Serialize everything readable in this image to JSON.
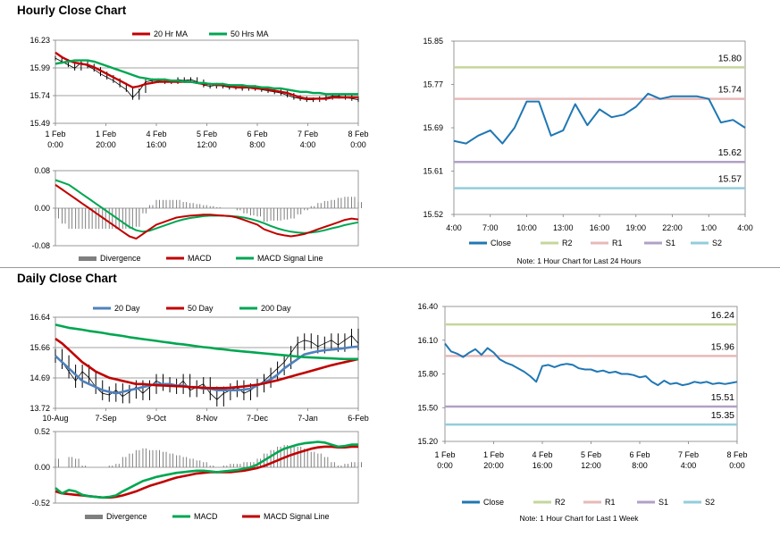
{
  "sections": {
    "hourly_title": "Hourly Close Chart",
    "daily_title": "Daily Close Chart"
  },
  "chart_data": [
    {
      "id": "hourly_price",
      "type": "line",
      "legend": [
        "20 Hr MA",
        "50 Hrs MA"
      ],
      "legend_colors": [
        "#c00000",
        "#00a651"
      ],
      "ylim": [
        15.49,
        16.23
      ],
      "y_ticks": [
        "16.23",
        "15.99",
        "15.74",
        "15.49"
      ],
      "x_ticks": [
        [
          "1 Feb",
          "0:00"
        ],
        [
          "1 Feb",
          "20:00"
        ],
        [
          "4 Feb",
          "16:00"
        ],
        [
          "5 Feb",
          "12:00"
        ],
        [
          "6 Feb",
          "8:00"
        ],
        [
          "7 Feb",
          "4:00"
        ],
        [
          "8 Feb",
          "0:00"
        ]
      ],
      "close": [
        16.07,
        16.04,
        16.01,
        15.98,
        16.03,
        16.0,
        15.97,
        15.93,
        15.9,
        15.87,
        15.83,
        15.79,
        15.72,
        15.78,
        15.86,
        15.87,
        15.87,
        15.86,
        15.86,
        15.88,
        15.87,
        15.88,
        15.86,
        15.83,
        15.82,
        15.83,
        15.82,
        15.81,
        15.81,
        15.8,
        15.81,
        15.8,
        15.79,
        15.78,
        15.77,
        15.76,
        15.74,
        15.72,
        15.71,
        15.7,
        15.7,
        15.71,
        15.72,
        15.73,
        15.73,
        15.72,
        15.71,
        15.7
      ],
      "series": [
        {
          "name": "20 Hr MA",
          "values": [
            16.12,
            16.08,
            16.05,
            16.03,
            16.02,
            16.01,
            15.99,
            15.96,
            15.93,
            15.9,
            15.87,
            15.84,
            15.81,
            15.82,
            15.84,
            15.85,
            15.86,
            15.86,
            15.86,
            15.86,
            15.86,
            15.86,
            15.85,
            15.84,
            15.84,
            15.83,
            15.83,
            15.82,
            15.81,
            15.81,
            15.81,
            15.8,
            15.8,
            15.79,
            15.78,
            15.77,
            15.76,
            15.74,
            15.72,
            15.71,
            15.71,
            15.71,
            15.71,
            15.72,
            15.72,
            15.72,
            15.72,
            15.72
          ]
        },
        {
          "name": "50 Hrs MA",
          "values": [
            16.02,
            16.03,
            16.04,
            16.05,
            16.05,
            16.05,
            16.04,
            16.02,
            16.0,
            15.98,
            15.96,
            15.94,
            15.92,
            15.9,
            15.89,
            15.88,
            15.88,
            15.88,
            15.87,
            15.87,
            15.86,
            15.86,
            15.85,
            15.85,
            15.84,
            15.84,
            15.84,
            15.83,
            15.83,
            15.83,
            15.82,
            15.82,
            15.81,
            15.81,
            15.8,
            15.8,
            15.79,
            15.78,
            15.77,
            15.77,
            15.76,
            15.76,
            15.75,
            15.75,
            15.75,
            15.75,
            15.75,
            15.75
          ]
        }
      ]
    },
    {
      "id": "hourly_macd",
      "type": "line",
      "legend": [
        "Divergence",
        "MACD",
        "MACD Signal Line"
      ],
      "legend_colors": [
        "#7f7f7f",
        "#c00000",
        "#00a651"
      ],
      "ylim": [
        -0.08,
        0.08
      ],
      "y_ticks": [
        "0.08",
        "0.00",
        "-0.08"
      ],
      "series": [
        {
          "name": "MACD",
          "values": [
            0.05,
            0.04,
            0.03,
            0.02,
            0.01,
            0.0,
            -0.01,
            -0.02,
            -0.03,
            -0.04,
            -0.05,
            -0.06,
            -0.065,
            -0.055,
            -0.045,
            -0.035,
            -0.03,
            -0.025,
            -0.02,
            -0.018,
            -0.016,
            -0.015,
            -0.014,
            -0.014,
            -0.015,
            -0.016,
            -0.017,
            -0.02,
            -0.025,
            -0.03,
            -0.035,
            -0.045,
            -0.05,
            -0.055,
            -0.058,
            -0.06,
            -0.058,
            -0.055,
            -0.05,
            -0.045,
            -0.04,
            -0.035,
            -0.03,
            -0.025,
            -0.022,
            -0.024
          ]
        },
        {
          "name": "MACD Signal Line",
          "values": [
            0.06,
            0.055,
            0.05,
            0.04,
            0.03,
            0.02,
            0.01,
            0.0,
            -0.01,
            -0.02,
            -0.03,
            -0.04,
            -0.047,
            -0.05,
            -0.048,
            -0.043,
            -0.038,
            -0.033,
            -0.028,
            -0.024,
            -0.021,
            -0.019,
            -0.017,
            -0.016,
            -0.016,
            -0.016,
            -0.017,
            -0.018,
            -0.02,
            -0.023,
            -0.027,
            -0.032,
            -0.038,
            -0.043,
            -0.047,
            -0.05,
            -0.052,
            -0.053,
            -0.052,
            -0.05,
            -0.047,
            -0.043,
            -0.04,
            -0.036,
            -0.033,
            -0.03
          ]
        }
      ]
    },
    {
      "id": "hourly_levels",
      "type": "line",
      "legend": [
        "Close",
        "R2",
        "R1",
        "S1",
        "S2"
      ],
      "legend_colors": [
        "#1f77b4",
        "#c4d79b",
        "#e6b9b8",
        "#b1a0c7",
        "#92cddc"
      ],
      "ylim": [
        15.52,
        15.85
      ],
      "y_ticks": [
        "15.85",
        "15.77",
        "15.69",
        "15.61",
        "15.52"
      ],
      "x_ticks": [
        "4:00",
        "7:00",
        "10:00",
        "13:00",
        "16:00",
        "19:00",
        "22:00",
        "1:00",
        "4:00"
      ],
      "levels": {
        "R2": 15.8,
        "R1": 15.74,
        "S1": 15.62,
        "S2": 15.57
      },
      "level_labels": [
        "15.80",
        "15.74",
        "15.62",
        "15.57"
      ],
      "close": [
        15.66,
        15.655,
        15.67,
        15.68,
        15.655,
        15.685,
        15.735,
        15.735,
        15.67,
        15.68,
        15.73,
        15.69,
        15.72,
        15.705,
        15.71,
        15.725,
        15.75,
        15.74,
        15.745,
        15.745,
        15.745,
        15.74,
        15.695,
        15.7,
        15.685
      ],
      "note": "Note: 1 Hour Chart for Last 24 Hours"
    },
    {
      "id": "daily_price",
      "type": "line",
      "legend": [
        "20 Day",
        "50 Day",
        "200 Day"
      ],
      "legend_colors": [
        "#4f81bd",
        "#c00000",
        "#00a651"
      ],
      "ylim": [
        13.72,
        16.64
      ],
      "y_ticks": [
        "16.64",
        "15.66",
        "14.69",
        "13.72"
      ],
      "x_ticks": [
        "10-Aug",
        "7-Sep",
        "9-Oct",
        "8-Nov",
        "7-Dec",
        "7-Jan",
        "6-Feb"
      ],
      "close": [
        15.4,
        15.2,
        14.9,
        14.6,
        14.9,
        14.7,
        14.4,
        14.2,
        14.15,
        14.3,
        14.1,
        14.25,
        14.4,
        14.2,
        14.4,
        14.6,
        14.5,
        14.45,
        14.4,
        14.6,
        14.3,
        14.4,
        14.5,
        14.2,
        14.0,
        14.2,
        14.3,
        14.4,
        14.2,
        14.3,
        14.45,
        14.6,
        14.8,
        15.0,
        15.2,
        15.5,
        15.8,
        15.9,
        15.85,
        15.7,
        15.8,
        15.9,
        15.75,
        15.9,
        16.05,
        15.8
      ],
      "series": [
        {
          "name": "20 Day",
          "values": [
            15.4,
            15.2,
            15.0,
            14.8,
            14.6,
            14.5,
            14.4,
            14.3,
            14.25,
            14.2,
            14.25,
            14.3,
            14.35,
            14.4,
            14.45,
            14.5,
            14.5,
            14.5,
            14.45,
            14.45,
            14.4,
            14.4,
            14.35,
            14.35,
            14.3,
            14.3,
            14.3,
            14.3,
            14.32,
            14.35,
            14.45,
            14.55,
            14.65,
            14.8,
            15.0,
            15.15,
            15.3,
            15.45,
            15.5,
            15.55,
            15.58,
            15.6,
            15.62,
            15.65,
            15.68,
            15.7
          ]
        },
        {
          "name": "50 Day",
          "values": [
            15.95,
            15.8,
            15.6,
            15.4,
            15.2,
            15.05,
            14.9,
            14.8,
            14.7,
            14.65,
            14.6,
            14.55,
            14.5,
            14.5,
            14.48,
            14.46,
            14.45,
            14.44,
            14.43,
            14.42,
            14.4,
            14.39,
            14.38,
            14.37,
            14.37,
            14.37,
            14.38,
            14.4,
            14.42,
            14.45,
            14.48,
            14.52,
            14.57,
            14.62,
            14.68,
            14.74,
            14.8,
            14.86,
            14.92,
            14.98,
            15.04,
            15.1,
            15.15,
            15.2,
            15.25,
            15.3
          ]
        },
        {
          "name": "200 Day",
          "values": [
            16.4,
            16.35,
            16.3,
            16.27,
            16.24,
            16.2,
            16.17,
            16.14,
            16.1,
            16.07,
            16.04,
            16.0,
            15.97,
            15.94,
            15.91,
            15.88,
            15.85,
            15.82,
            15.79,
            15.77,
            15.74,
            15.71,
            15.68,
            15.66,
            15.63,
            15.61,
            15.58,
            15.56,
            15.54,
            15.52,
            15.5,
            15.48,
            15.46,
            15.44,
            15.42,
            15.4,
            15.38,
            15.36,
            15.35,
            15.34,
            15.33,
            15.32,
            15.31,
            15.3,
            15.3,
            15.3
          ]
        }
      ]
    },
    {
      "id": "daily_macd",
      "type": "line",
      "legend": [
        "Divergence",
        "MACD",
        "MACD Signal Line"
      ],
      "legend_colors": [
        "#7f7f7f",
        "#00a651",
        "#c00000"
      ],
      "ylim": [
        -0.52,
        0.52
      ],
      "y_ticks": [
        "0.52",
        "0.00",
        "-0.52"
      ],
      "series": [
        {
          "name": "MACD",
          "values": [
            -0.3,
            -0.38,
            -0.33,
            -0.35,
            -0.4,
            -0.42,
            -0.43,
            -0.44,
            -0.43,
            -0.41,
            -0.35,
            -0.3,
            -0.25,
            -0.2,
            -0.17,
            -0.14,
            -0.12,
            -0.1,
            -0.08,
            -0.07,
            -0.06,
            -0.05,
            -0.05,
            -0.06,
            -0.07,
            -0.06,
            -0.05,
            -0.04,
            -0.02,
            0.0,
            0.04,
            0.1,
            0.16,
            0.22,
            0.27,
            0.3,
            0.33,
            0.35,
            0.36,
            0.37,
            0.36,
            0.33,
            0.3,
            0.31,
            0.33,
            0.33
          ]
        },
        {
          "name": "MACD Signal Line",
          "values": [
            -0.35,
            -0.38,
            -0.39,
            -0.4,
            -0.41,
            -0.42,
            -0.43,
            -0.44,
            -0.44,
            -0.43,
            -0.41,
            -0.38,
            -0.35,
            -0.31,
            -0.27,
            -0.24,
            -0.21,
            -0.18,
            -0.15,
            -0.13,
            -0.11,
            -0.09,
            -0.08,
            -0.07,
            -0.07,
            -0.07,
            -0.07,
            -0.06,
            -0.05,
            -0.03,
            -0.01,
            0.02,
            0.06,
            0.1,
            0.14,
            0.18,
            0.21,
            0.24,
            0.27,
            0.29,
            0.3,
            0.3,
            0.29,
            0.29,
            0.3,
            0.3
          ]
        }
      ]
    },
    {
      "id": "daily_levels",
      "type": "line",
      "legend": [
        "Close",
        "R2",
        "R1",
        "S1",
        "S2"
      ],
      "legend_colors": [
        "#1f77b4",
        "#c4d79b",
        "#e6b9b8",
        "#b1a0c7",
        "#92cddc"
      ],
      "ylim": [
        15.2,
        16.4
      ],
      "y_ticks": [
        "16.40",
        "16.10",
        "15.80",
        "15.50",
        "15.20"
      ],
      "x_ticks": [
        [
          "1 Feb",
          "0:00"
        ],
        [
          "1 Feb",
          "20:00"
        ],
        [
          "4 Feb",
          "16:00"
        ],
        [
          "5 Feb",
          "12:00"
        ],
        [
          "6 Feb",
          "8:00"
        ],
        [
          "7 Feb",
          "4:00"
        ],
        [
          "8 Feb",
          "0:00"
        ]
      ],
      "levels": {
        "R2": 16.24,
        "R1": 15.96,
        "S1": 15.51,
        "S2": 15.35
      },
      "level_labels": [
        "16.24",
        "15.96",
        "15.51",
        "15.35"
      ],
      "close": [
        16.07,
        16.0,
        15.98,
        15.95,
        15.99,
        16.02,
        15.97,
        16.03,
        15.99,
        15.93,
        15.9,
        15.88,
        15.85,
        15.82,
        15.78,
        15.73,
        15.87,
        15.88,
        15.86,
        15.88,
        15.89,
        15.88,
        15.85,
        15.84,
        15.84,
        15.82,
        15.83,
        15.81,
        15.82,
        15.8,
        15.8,
        15.79,
        15.77,
        15.78,
        15.73,
        15.7,
        15.74,
        15.71,
        15.72,
        15.7,
        15.71,
        15.73,
        15.72,
        15.73,
        15.71,
        15.72,
        15.71,
        15.72,
        15.73
      ],
      "note": "Note: 1 Hour Chart for Last 1 Week"
    }
  ]
}
